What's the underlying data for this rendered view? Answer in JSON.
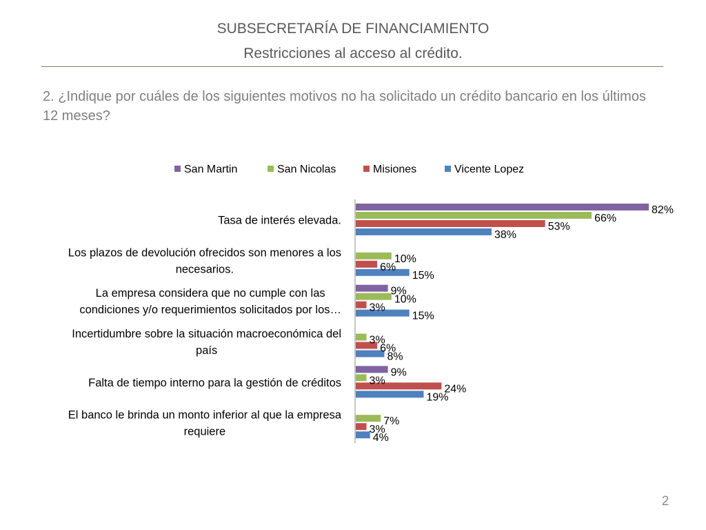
{
  "slide": {
    "title": "SUBSECRETARÍA DE FINANCIAMIENTO",
    "subtitle": "Restricciones al acceso al crédito.",
    "question": "2.  ¿Indique por cuáles de los siguientes motivos no ha solicitado un crédito bancario en los últimos 12 meses?",
    "page_number": "2"
  },
  "chart_data": {
    "type": "bar",
    "orientation": "horizontal",
    "title": "",
    "xlabel": "",
    "ylabel": "",
    "xlim": [
      0,
      82
    ],
    "grid": false,
    "legend_position": "top",
    "value_suffix": "%",
    "categories": [
      "Tasa de interés elevada.",
      "Los plazos de devolución ofrecidos son menores a los necesarios.",
      "La empresa considera que no cumple con las condiciones y/o requerimientos solicitados por los…",
      "Incertidumbre sobre la situación macroeconómica del país",
      "Falta de tiempo interno para la gestión de créditos",
      "El banco le brinda un monto inferior al que la empresa requiere"
    ],
    "category_lines": [
      [
        "Tasa de interés elevada."
      ],
      [
        "Los plazos de devolución ofrecidos son menores a los",
        "necesarios."
      ],
      [
        "La empresa considera que no cumple con las",
        "condiciones y/o requerimientos solicitados por los…"
      ],
      [
        "Incertidumbre sobre la situación macroeconómica del",
        "país"
      ],
      [
        "Falta de tiempo interno para la gestión de créditos"
      ],
      [
        "El banco le brinda un monto inferior al que la empresa",
        "requiere"
      ]
    ],
    "series": [
      {
        "name": "San Martin",
        "color": "#8064A2",
        "values": [
          82,
          null,
          9,
          null,
          9,
          null
        ]
      },
      {
        "name": "San Nicolas",
        "color": "#9BBB59",
        "values": [
          66,
          10,
          10,
          3,
          3,
          7
        ]
      },
      {
        "name": "Misiones",
        "color": "#C0504D",
        "values": [
          53,
          6,
          3,
          6,
          24,
          3
        ]
      },
      {
        "name": "Vicente Lopez",
        "color": "#4F81BD",
        "values": [
          38,
          15,
          15,
          8,
          19,
          4
        ]
      }
    ]
  }
}
